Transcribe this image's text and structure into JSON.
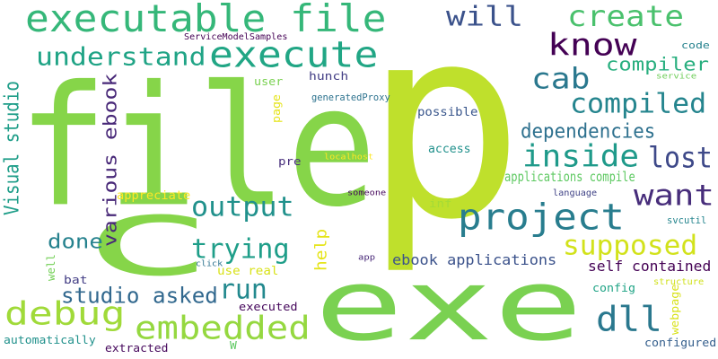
{
  "wordcloud": {
    "words": [
      {
        "id": "p",
        "text": "p",
        "color": "#bfe02c"
      },
      {
        "id": "file",
        "text": "file",
        "color": "#86d549"
      },
      {
        "id": "exe",
        "text": "exe",
        "color": "#7ad151"
      },
      {
        "id": "c",
        "text": "c",
        "color": "#86d549"
      },
      {
        "id": "executable-file",
        "text": "executable file",
        "color": "#35b779"
      },
      {
        "id": "execute",
        "text": "execute",
        "color": "#21a685"
      },
      {
        "id": "know",
        "text": "know",
        "color": "#440154"
      },
      {
        "id": "create",
        "text": "create",
        "color": "#4ac16d"
      },
      {
        "id": "will",
        "text": "will",
        "color": "#3b528b"
      },
      {
        "id": "understand",
        "text": "understand",
        "color": "#20a486"
      },
      {
        "id": "project",
        "text": "project",
        "color": "#287d8e"
      },
      {
        "id": "compiled",
        "text": "compiled",
        "color": "#25858e"
      },
      {
        "id": "cab",
        "text": "cab",
        "color": "#2a788e"
      },
      {
        "id": "compiler",
        "text": "compiler",
        "color": "#29af7f"
      },
      {
        "id": "dependencies",
        "text": "dependencies",
        "color": "#2d708e"
      },
      {
        "id": "inside",
        "text": "inside",
        "color": "#1f9a8a"
      },
      {
        "id": "lost",
        "text": "lost",
        "color": "#3e4989"
      },
      {
        "id": "want",
        "text": "want",
        "color": "#472d7b"
      },
      {
        "id": "output",
        "text": "output",
        "color": "#21918c"
      },
      {
        "id": "applications-compile",
        "text": "applications compile",
        "color": "#5ec962"
      },
      {
        "id": "supposed",
        "text": "supposed",
        "color": "#d2e21b"
      },
      {
        "id": "trying",
        "text": "trying",
        "color": "#1f9e89"
      },
      {
        "id": "done",
        "text": "done",
        "color": "#26828e"
      },
      {
        "id": "run",
        "text": "run",
        "color": "#23898e"
      },
      {
        "id": "debug",
        "text": "debug",
        "color": "#a0da39"
      },
      {
        "id": "embedded",
        "text": "embedded",
        "color": "#95d840"
      },
      {
        "id": "studio-asked",
        "text": "studio asked",
        "color": "#31688e"
      },
      {
        "id": "dll",
        "text": "dll",
        "color": "#2a788e"
      },
      {
        "id": "ebook-applications",
        "text": "ebook applications",
        "color": "#3b528b"
      },
      {
        "id": "self-contained",
        "text": "self contained",
        "color": "#440154"
      },
      {
        "id": "visual-studio",
        "text": "Visual studio",
        "color": "#1f9e89"
      },
      {
        "id": "various-ebook",
        "text": "various ebook",
        "color": "#482878"
      },
      {
        "id": "help",
        "text": "help",
        "color": "#e5e419"
      },
      {
        "id": "service-model-samples",
        "text": "ServiceModelSamples",
        "color": "#440154"
      },
      {
        "id": "code",
        "text": "code",
        "color": "#26828e"
      },
      {
        "id": "service",
        "text": "service",
        "color": "#6ece58"
      },
      {
        "id": "generated-proxy",
        "text": "generatedProxy",
        "color": "#2c728e"
      },
      {
        "id": "hunch",
        "text": "hunch",
        "color": "#433e85"
      },
      {
        "id": "user",
        "text": "user",
        "color": "#7ad151"
      },
      {
        "id": "page",
        "text": "page",
        "color": "#e5e419"
      },
      {
        "id": "possible",
        "text": "possible",
        "color": "#39568c"
      },
      {
        "id": "pre",
        "text": "pre",
        "color": "#472d7b"
      },
      {
        "id": "localhost",
        "text": "localhost",
        "color": "#fde725"
      },
      {
        "id": "access",
        "text": "access",
        "color": "#21918c"
      },
      {
        "id": "appreciate",
        "text": "appreciate",
        "color": "#fde725"
      },
      {
        "id": "someone",
        "text": "someone",
        "color": "#46085c"
      },
      {
        "id": "language",
        "text": "language",
        "color": "#414487"
      },
      {
        "id": "inf",
        "text": "inf",
        "color": "#a5db36"
      },
      {
        "id": "svcutil",
        "text": "svcutil",
        "color": "#25858e"
      },
      {
        "id": "use-real",
        "text": "use real",
        "color": "#d8e219"
      },
      {
        "id": "app",
        "text": "app",
        "color": "#482878"
      },
      {
        "id": "click",
        "text": "click",
        "color": "#2c728e"
      },
      {
        "id": "well",
        "text": "well",
        "color": "#73d056"
      },
      {
        "id": "bat",
        "text": "bat",
        "color": "#433e85"
      },
      {
        "id": "structure",
        "text": "structure",
        "color": "#d0e11c"
      },
      {
        "id": "webpage",
        "text": "webpage",
        "color": "#d8e219"
      },
      {
        "id": "config",
        "text": "config",
        "color": "#20a486"
      },
      {
        "id": "executed",
        "text": "executed",
        "color": "#46085c"
      },
      {
        "id": "automatically",
        "text": "automatically",
        "color": "#21918c"
      },
      {
        "id": "w",
        "text": "W",
        "color": "#5ec962"
      },
      {
        "id": "extracted",
        "text": "extracted",
        "color": "#46085c"
      },
      {
        "id": "configured",
        "text": "configured",
        "color": "#355f8d"
      }
    ]
  }
}
